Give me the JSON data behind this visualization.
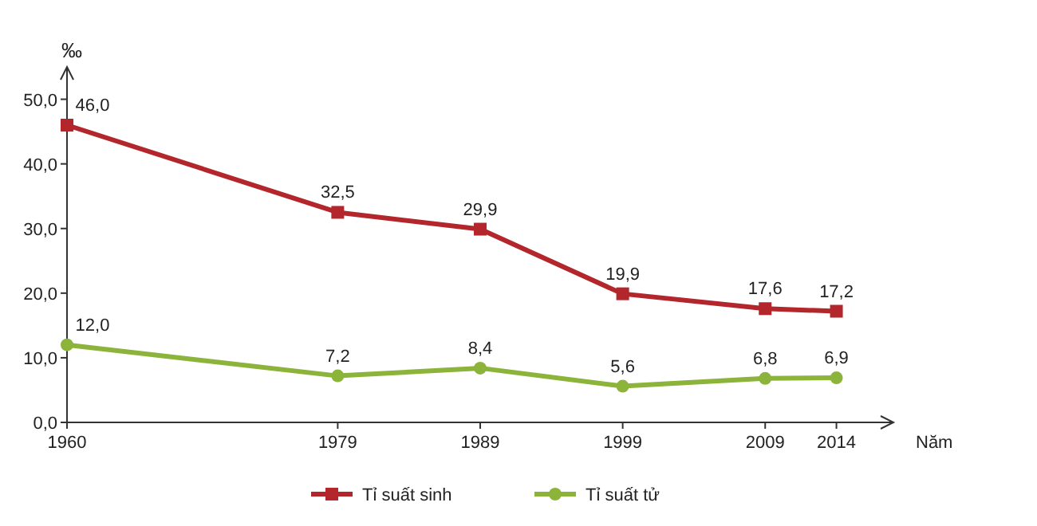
{
  "chart_data": {
    "type": "line",
    "ylabel": "‰",
    "xlabel": "Năm",
    "x": [
      1960,
      1979,
      1989,
      1999,
      2009,
      2014
    ],
    "xlim": [
      1960,
      2018
    ],
    "xticks": [
      1960,
      1979,
      1989,
      1999,
      2009,
      2014
    ],
    "ylim": [
      0,
      55
    ],
    "yticks": [
      {
        "value": 0,
        "label": "0,0"
      },
      {
        "value": 10,
        "label": "10,0"
      },
      {
        "value": 20,
        "label": "20,0"
      },
      {
        "value": 30,
        "label": "30,0"
      },
      {
        "value": 40,
        "label": "40,0"
      },
      {
        "value": 50,
        "label": "50,0"
      }
    ],
    "legend": "bottom",
    "grid": false,
    "series": [
      {
        "name": "Tỉ suất sinh",
        "color": "#b3262b",
        "marker": "square",
        "values": [
          46.0,
          32.5,
          29.9,
          19.9,
          17.6,
          17.2
        ],
        "value_labels": [
          "46,0",
          "32,5",
          "29,9",
          "19,9",
          "17,6",
          "17,2"
        ]
      },
      {
        "name": "Tỉ suất tử",
        "color": "#8cb33a",
        "marker": "circle",
        "values": [
          12.0,
          7.2,
          8.4,
          5.6,
          6.8,
          6.9
        ],
        "value_labels": [
          "12,0",
          "7,2",
          "8,4",
          "5,6",
          "6,8",
          "6,9"
        ]
      }
    ]
  }
}
